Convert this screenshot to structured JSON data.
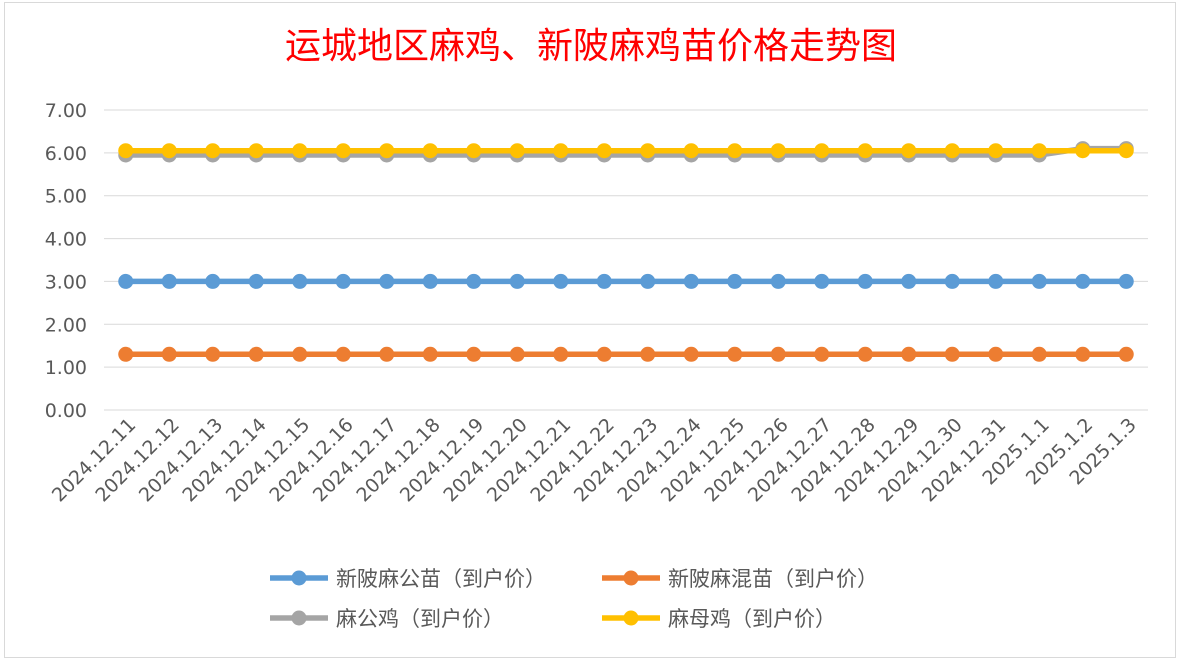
{
  "chart_data": {
    "type": "line",
    "title": "运城地区麻鸡、新陂麻鸡苗价格走势图",
    "xlabel": "",
    "ylabel": "",
    "categories": [
      "2024.12.11",
      "2024.12.12",
      "2024.12.13",
      "2024.12.14",
      "2024.12.15",
      "2024.12.16",
      "2024.12.17",
      "2024.12.18",
      "2024.12.19",
      "2024.12.20",
      "2024.12.21",
      "2024.12.22",
      "2024.12.23",
      "2024.12.24",
      "2024.12.25",
      "2024.12.26",
      "2024.12.27",
      "2024.12.28",
      "2024.12.29",
      "2024.12.30",
      "2024.12.31",
      "2025.1.1",
      "2025.1.2",
      "2025.1.3"
    ],
    "ylim": [
      0,
      7
    ],
    "yticks": [
      "0.00",
      "1.00",
      "2.00",
      "3.00",
      "4.00",
      "5.00",
      "6.00",
      "7.00"
    ],
    "grid": "horizontal",
    "legend_position": "bottom",
    "series": [
      {
        "name": "新陂麻公苗（到户价）",
        "color": "#5b9bd5",
        "values": [
          3,
          3,
          3,
          3,
          3,
          3,
          3,
          3,
          3,
          3,
          3,
          3,
          3,
          3,
          3,
          3,
          3,
          3,
          3,
          3,
          3,
          3,
          3,
          3
        ]
      },
      {
        "name": "新陂麻混苗（到户价）",
        "color": "#ed7d31",
        "values": [
          1.3,
          1.3,
          1.3,
          1.3,
          1.3,
          1.3,
          1.3,
          1.3,
          1.3,
          1.3,
          1.3,
          1.3,
          1.3,
          1.3,
          1.3,
          1.3,
          1.3,
          1.3,
          1.3,
          1.3,
          1.3,
          1.3,
          1.3,
          1.3
        ]
      },
      {
        "name": "麻公鸡（到户价）",
        "color": "#a5a5a5",
        "values": [
          5.95,
          5.95,
          5.95,
          5.95,
          5.95,
          5.95,
          5.95,
          5.95,
          5.95,
          5.95,
          5.95,
          5.95,
          5.95,
          5.95,
          5.95,
          5.95,
          5.95,
          5.95,
          5.95,
          5.95,
          5.95,
          5.95,
          6.1,
          6.1
        ]
      },
      {
        "name": "麻母鸡（到户价）",
        "color": "#ffc000",
        "values": [
          6.05,
          6.05,
          6.05,
          6.05,
          6.05,
          6.05,
          6.05,
          6.05,
          6.05,
          6.05,
          6.05,
          6.05,
          6.05,
          6.05,
          6.05,
          6.05,
          6.05,
          6.05,
          6.05,
          6.05,
          6.05,
          6.05,
          6.05,
          6.05
        ]
      }
    ],
    "draw_order": [
      2,
      3,
      0,
      1
    ]
  }
}
